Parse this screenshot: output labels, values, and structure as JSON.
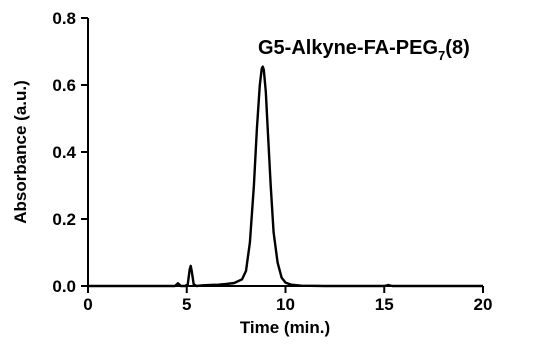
{
  "chart_data": {
    "type": "line",
    "title": "G5-Alkyne-FA-PEG",
    "title_subscript": "7",
    "title_suffix": "(8)",
    "xlabel": "Time (min.)",
    "ylabel": "Absorbance (a.u.)",
    "xlim": [
      0,
      20
    ],
    "ylim": [
      0,
      0.8
    ],
    "x_ticks": [
      0,
      5,
      10,
      15,
      20
    ],
    "x_tick_labels": [
      "0",
      "5",
      "10",
      "15",
      "20"
    ],
    "y_ticks": [
      0,
      0.2,
      0.4,
      0.6,
      0.8
    ],
    "y_tick_labels": [
      "0.0",
      "0.2",
      "0.4",
      "0.6",
      "0.8"
    ],
    "grid": false,
    "legend": "none",
    "line_color": "#000000",
    "series": [
      {
        "x": [
          0,
          2.5,
          4.4,
          4.55,
          4.7,
          4.9,
          5.05,
          5.15,
          5.2,
          5.25,
          5.35,
          5.5,
          5.8,
          6.2,
          6.6,
          7.0,
          7.4,
          7.8,
          8.0,
          8.2,
          8.4,
          8.55,
          8.7,
          8.8,
          8.85,
          8.9,
          9.0,
          9.1,
          9.25,
          9.4,
          9.6,
          9.8,
          10.0,
          10.3,
          10.8,
          12.0,
          14.0,
          15.0,
          15.2,
          15.4,
          16.0,
          20.0
        ],
        "y": [
          0,
          0,
          0,
          0.008,
          0,
          0,
          0.004,
          0.05,
          0.06,
          0.045,
          0.005,
          0,
          0.002,
          0.003,
          0.004,
          0.006,
          0.009,
          0.02,
          0.045,
          0.13,
          0.3,
          0.47,
          0.6,
          0.65,
          0.655,
          0.645,
          0.58,
          0.47,
          0.3,
          0.16,
          0.07,
          0.025,
          0.01,
          0.004,
          0.001,
          0,
          0,
          0,
          0.003,
          0,
          0,
          0
        ]
      }
    ]
  }
}
